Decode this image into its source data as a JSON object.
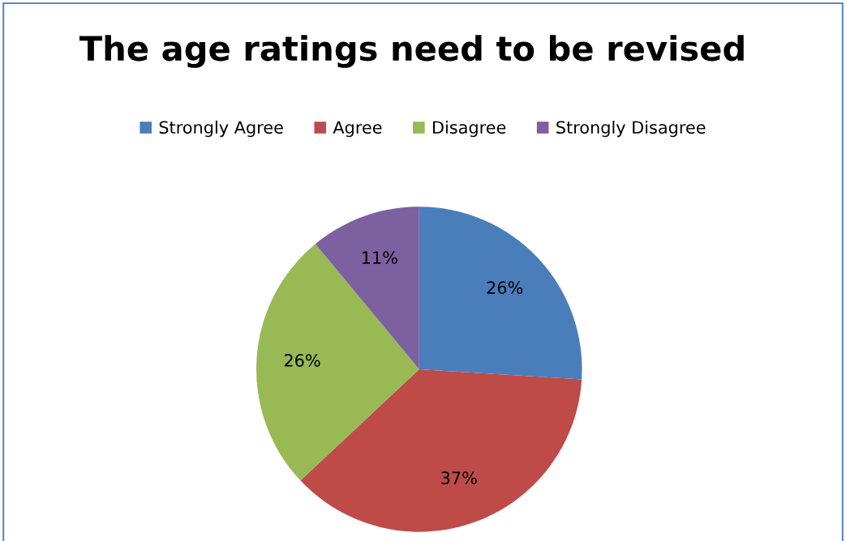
{
  "chart_data": {
    "type": "pie",
    "title": "The age ratings need to be revised",
    "categories": [
      "Strongly Agree",
      "Agree",
      "Disagree",
      "Strongly Disagree"
    ],
    "values": [
      26,
      37,
      26,
      11
    ],
    "colors": [
      "#4a7ebb",
      "#be4b48",
      "#98b954",
      "#7d60a0"
    ],
    "value_labels": [
      "26%",
      "37%",
      "26%",
      "11%"
    ],
    "legend": "top"
  }
}
